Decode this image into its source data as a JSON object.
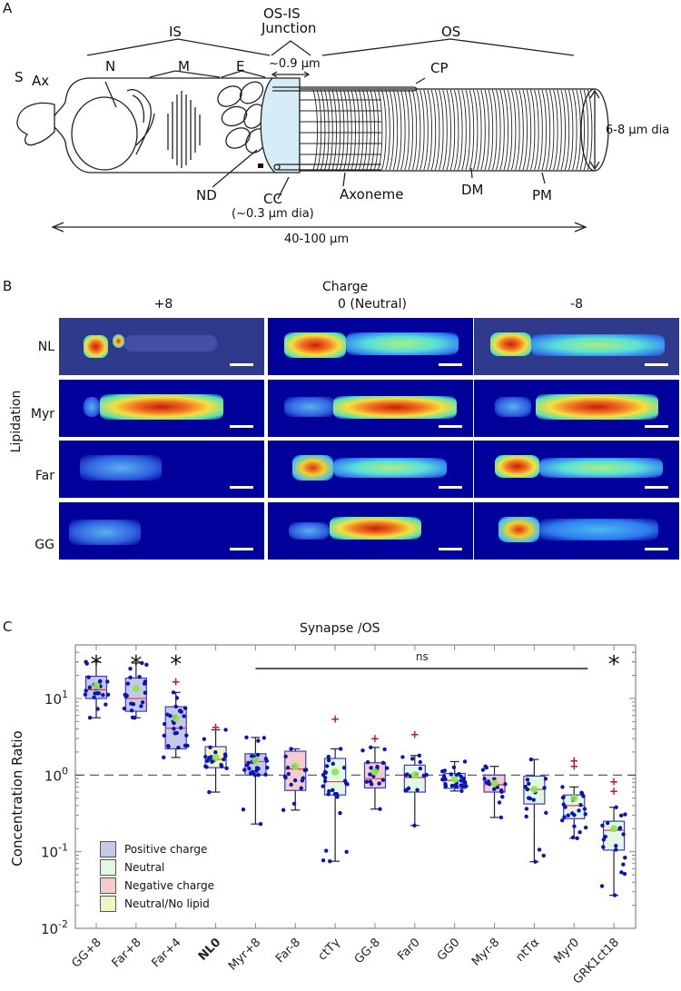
{
  "panelA": {
    "letter": "A",
    "labels": {
      "is": "IS",
      "junction_line1": "OS-IS",
      "junction_line2": "Junction",
      "os": "OS",
      "s": "S",
      "ax": "Ax",
      "n": "N",
      "m": "M",
      "e": "E",
      "junction_width": "~0.9 μm",
      "cp": "CP",
      "diameter": "6-8 μm dia",
      "nd": "ND",
      "cc": "CC",
      "cc_dia": "(~0.3 μm dia)",
      "axoneme": "Axoneme",
      "dm": "DM",
      "pm": "PM",
      "length": "40-100 μm"
    },
    "colors": {
      "junction_fill": "#d6ecf7",
      "line": "#222222"
    }
  },
  "panelB": {
    "letter": "B",
    "column_header": "Charge",
    "columns": [
      "+8",
      "0 (Neutral)",
      "-8"
    ],
    "row_header": "Lipidation",
    "rows": [
      "NL",
      "Myr",
      "Far",
      "GG"
    ],
    "colors": {
      "background_dark": "#00009a",
      "background_muted": "#303a8c",
      "scale_bar": "#ffffff"
    }
  },
  "chart_data": {
    "type": "box",
    "panel_letter": "C",
    "title": "Synapse /OS",
    "xlabel": "",
    "ylabel": "Concentration Ratio",
    "yscale": "log",
    "ylim": [
      0.01,
      50
    ],
    "yticks": [
      0.01,
      0.1,
      1,
      10
    ],
    "ytick_labels": [
      {
        "base": "10",
        "exp": "-2"
      },
      {
        "base": "10",
        "exp": "-1"
      },
      {
        "base": "10",
        "exp": "0"
      },
      {
        "base": "10",
        "exp": "1"
      }
    ],
    "reference_line": {
      "y": 1,
      "style": "dashed"
    },
    "significance": {
      "ns_label": "ns",
      "ns_span": [
        "Myr+8",
        "Myr0"
      ],
      "star_label": "*",
      "starred": [
        "GG+8",
        "Far+8",
        "Far+4",
        "GRK1ct18"
      ]
    },
    "legend": {
      "position": "bottom-left",
      "entries": [
        {
          "label": "Positive charge",
          "color": "#c5c8e6"
        },
        {
          "label": "Neutral",
          "color": "#e3f8e3"
        },
        {
          "label": "Negative charge",
          "color": "#f3cccc"
        },
        {
          "label": "Neutral/No lipid",
          "color": "#eef7c0"
        }
      ]
    },
    "categories": [
      "GG+8",
      "Far+8",
      "Far+4",
      "NL0",
      "Myr+8",
      "Far-8",
      "ctTγ",
      "GG-8",
      "Far0",
      "GG0",
      "Myr-8",
      "ntTα",
      "Myr0",
      "GRK1ct18"
    ],
    "bold_category": "NL0",
    "series": [
      {
        "name": "GG+8",
        "group": "Positive charge",
        "whisker_low": 5.6,
        "q1": 10,
        "median": 13,
        "q3": 19.5,
        "whisker_high": 30,
        "mean": 14.5,
        "outliers": []
      },
      {
        "name": "Far+8",
        "group": "Positive charge",
        "whisker_low": 5.6,
        "q1": 6.8,
        "median": 10,
        "q3": 18.5,
        "whisker_high": 29,
        "mean": 13.5,
        "outliers": []
      },
      {
        "name": "Far+4",
        "group": "Positive charge",
        "whisker_low": 1.7,
        "q1": 2.2,
        "median": 4.1,
        "q3": 7.8,
        "whisker_high": 12,
        "mean": 5.5,
        "outliers": [
          16.5
        ]
      },
      {
        "name": "NL0",
        "group": "Neutral/No lipid",
        "whisker_low": 0.6,
        "q1": 1.25,
        "median": 1.6,
        "q3": 2.35,
        "whisker_high": 3.9,
        "mean": 1.7,
        "outliers": [
          4.2
        ]
      },
      {
        "name": "Myr+8",
        "group": "Positive charge",
        "whisker_low": 0.23,
        "q1": 1.0,
        "median": 1.5,
        "q3": 1.9,
        "whisker_high": 3.1,
        "mean": 1.55,
        "outliers": []
      },
      {
        "name": "Far-8",
        "group": "Negative charge",
        "whisker_low": 0.35,
        "q1": 0.63,
        "median": 1.2,
        "q3": 2.05,
        "whisker_high": 2.2,
        "mean": 1.3,
        "outliers": []
      },
      {
        "name": "ctTγ",
        "group": "Neutral",
        "whisker_low": 0.075,
        "q1": 0.55,
        "median": 0.82,
        "q3": 1.65,
        "whisker_high": 2.2,
        "mean": 1.1,
        "outliers": [
          5.4
        ]
      },
      {
        "name": "GG-8",
        "group": "Negative charge",
        "whisker_low": 0.36,
        "q1": 0.68,
        "median": 0.9,
        "q3": 1.45,
        "whisker_high": 2.3,
        "mean": 1.1,
        "outliers": [
          3.0
        ]
      },
      {
        "name": "Far0",
        "group": "Neutral",
        "whisker_low": 0.22,
        "q1": 0.6,
        "median": 0.93,
        "q3": 1.35,
        "whisker_high": 1.8,
        "mean": 1.0,
        "outliers": [
          3.4
        ]
      },
      {
        "name": "GG0",
        "group": "Neutral",
        "whisker_low": 0.62,
        "q1": 0.67,
        "median": 0.85,
        "q3": 1.05,
        "whisker_high": 1.5,
        "mean": 0.88,
        "outliers": []
      },
      {
        "name": "Myr-8",
        "group": "Negative charge",
        "whisker_low": 0.28,
        "q1": 0.6,
        "median": 0.75,
        "q3": 1.0,
        "whisker_high": 1.3,
        "mean": 0.78,
        "outliers": []
      },
      {
        "name": "ntTα",
        "group": "Neutral",
        "whisker_low": 0.074,
        "q1": 0.42,
        "median": 0.65,
        "q3": 0.97,
        "whisker_high": 1.6,
        "mean": 0.65,
        "outliers": []
      },
      {
        "name": "Myr0",
        "group": "Neutral",
        "whisker_low": 0.15,
        "q1": 0.27,
        "median": 0.4,
        "q3": 0.55,
        "whisker_high": 0.7,
        "mean": 0.5,
        "outliers": [
          1.3,
          1.55
        ]
      },
      {
        "name": "GRK1ct18",
        "group": "Neutral",
        "whisker_low": 0.027,
        "q1": 0.105,
        "median": 0.19,
        "q3": 0.25,
        "whisker_high": 0.38,
        "mean": 0.2,
        "outliers": [
          0.62,
          0.82
        ]
      }
    ],
    "colors": {
      "box_edge": "#3a3acc",
      "median": "#d9433a",
      "mean": "#8ce64a",
      "points": "#0a14b4",
      "outlier": "#c8102e",
      "whisker": "#222222",
      "axis": "#888888"
    }
  }
}
